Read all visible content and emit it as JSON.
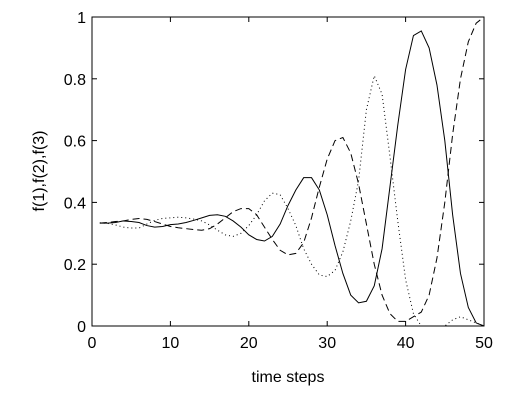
{
  "chart_data": {
    "type": "line",
    "xlabel": "time steps",
    "ylabel": "f(1),f(2),f(3)",
    "x": [
      1,
      2,
      3,
      4,
      5,
      6,
      7,
      8,
      9,
      10,
      11,
      12,
      13,
      14,
      15,
      16,
      17,
      18,
      19,
      20,
      21,
      22,
      23,
      24,
      25,
      26,
      27,
      28,
      29,
      30,
      31,
      32,
      33,
      34,
      35,
      36,
      37,
      38,
      39,
      40,
      41,
      42,
      43,
      44,
      45,
      46,
      47,
      48,
      49,
      50
    ],
    "series": [
      {
        "color": "#000000",
        "style": "solid",
        "values": [
          0.333,
          0.333,
          0.335,
          0.34,
          0.338,
          0.335,
          0.325,
          0.32,
          0.322,
          0.328,
          0.33,
          0.335,
          0.342,
          0.35,
          0.358,
          0.36,
          0.355,
          0.34,
          0.32,
          0.295,
          0.28,
          0.275,
          0.29,
          0.33,
          0.39,
          0.44,
          0.48,
          0.48,
          0.44,
          0.36,
          0.26,
          0.17,
          0.1,
          0.075,
          0.08,
          0.13,
          0.25,
          0.45,
          0.65,
          0.83,
          0.94,
          0.955,
          0.9,
          0.78,
          0.6,
          0.36,
          0.17,
          0.06,
          0.01,
          0
        ]
      },
      {
        "color": "#000000",
        "style": "dashed",
        "values": [
          0.333,
          0.335,
          0.338,
          0.34,
          0.345,
          0.348,
          0.345,
          0.338,
          0.33,
          0.322,
          0.318,
          0.315,
          0.312,
          0.31,
          0.315,
          0.33,
          0.35,
          0.37,
          0.38,
          0.38,
          0.36,
          0.32,
          0.28,
          0.245,
          0.23,
          0.235,
          0.27,
          0.35,
          0.45,
          0.54,
          0.6,
          0.61,
          0.56,
          0.46,
          0.33,
          0.2,
          0.1,
          0.04,
          0.015,
          0.015,
          0.03,
          0.045,
          0.1,
          0.22,
          0.4,
          0.62,
          0.8,
          0.92,
          0.98,
          1.0
        ]
      },
      {
        "color": "#000000",
        "style": "dotted",
        "values": [
          0.334,
          0.332,
          0.327,
          0.32,
          0.317,
          0.317,
          0.33,
          0.342,
          0.348,
          0.35,
          0.352,
          0.35,
          0.346,
          0.34,
          0.327,
          0.31,
          0.295,
          0.29,
          0.3,
          0.325,
          0.36,
          0.405,
          0.43,
          0.425,
          0.38,
          0.325,
          0.25,
          0.2,
          0.165,
          0.16,
          0.18,
          0.24,
          0.34,
          0.47,
          0.7,
          0.81,
          0.75,
          0.55,
          0.34,
          0.15,
          0.04,
          0,
          0,
          0,
          0,
          0.02,
          0.03,
          0.02,
          0.01,
          0
        ]
      }
    ],
    "xlim": [
      0,
      50
    ],
    "xticks": [
      0,
      10,
      20,
      30,
      40,
      50
    ],
    "ylim": [
      0,
      1
    ],
    "yticks": [
      0,
      0.2,
      0.4,
      0.6,
      0.8,
      1
    ],
    "grid": false
  }
}
